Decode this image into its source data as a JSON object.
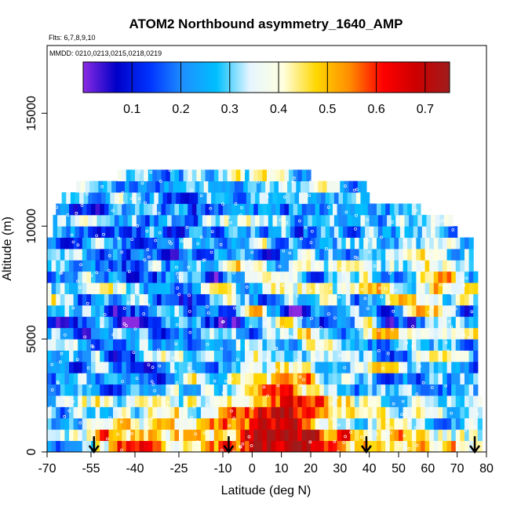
{
  "chart_data": {
    "type": "heatmap",
    "title": "ATOM2 Northbound asymmetry_1640_AMP",
    "flights_note": "Flts: 6,7,8,9,10",
    "dates_note": "MMDD: 0210,0213,0215,0218,0219",
    "xlabel": "Latitude (deg N)",
    "ylabel": "Altitude (m)",
    "xlim": [
      -70,
      80
    ],
    "ylim": [
      0,
      18000
    ],
    "x_ticks": [
      -70,
      -55,
      -40,
      -25,
      -10,
      0,
      10,
      20,
      30,
      40,
      50,
      60,
      70,
      80
    ],
    "y_ticks": [
      0,
      5000,
      10000,
      15000
    ],
    "colorbar": {
      "range": [
        0,
        0.75
      ],
      "ticks": [
        0.1,
        0.2,
        0.3,
        0.4,
        0.5,
        0.6,
        0.7
      ],
      "colors": [
        "#8a2be2",
        "#0000c8",
        "#0033ff",
        "#1e90ff",
        "#00bfff",
        "#e6f5ff",
        "#ffffe0",
        "#ffd700",
        "#ff8c00",
        "#ff0000",
        "#cc0000",
        "#a01c1c"
      ]
    },
    "altitude_bins_m": [
      0,
      500,
      1000,
      1500,
      2000,
      2500,
      3000,
      3500,
      4000,
      4500,
      5000,
      5500,
      6000,
      6500,
      7000,
      7500,
      8000,
      8500,
      9000,
      9500,
      10000,
      10500,
      11000,
      11500,
      12000
    ],
    "bin_latitude_extent": [
      [
        -70,
        78
      ],
      [
        -70,
        78
      ],
      [
        -70,
        78
      ],
      [
        -70,
        78
      ],
      [
        -70,
        78
      ],
      [
        -70,
        76
      ],
      [
        -70,
        76
      ],
      [
        -70,
        76
      ],
      [
        -70,
        76
      ],
      [
        -70,
        76
      ],
      [
        -70,
        76
      ],
      [
        -70,
        76
      ],
      [
        -70,
        76
      ],
      [
        -70,
        76
      ],
      [
        -70,
        76
      ],
      [
        -70,
        76
      ],
      [
        -70,
        75
      ],
      [
        -70,
        75
      ],
      [
        -70,
        75
      ],
      [
        -68,
        70
      ],
      [
        -68,
        68
      ],
      [
        -67,
        57
      ],
      [
        -65,
        40
      ],
      [
        -60,
        38
      ],
      [
        -46,
        19
      ]
    ],
    "annotations": [
      {
        "type": "arrow",
        "latitude": -54
      },
      {
        "type": "arrow",
        "latitude": -8
      },
      {
        "type": "arrow",
        "latitude": 39
      },
      {
        "type": "arrow",
        "latitude": 76
      }
    ]
  }
}
